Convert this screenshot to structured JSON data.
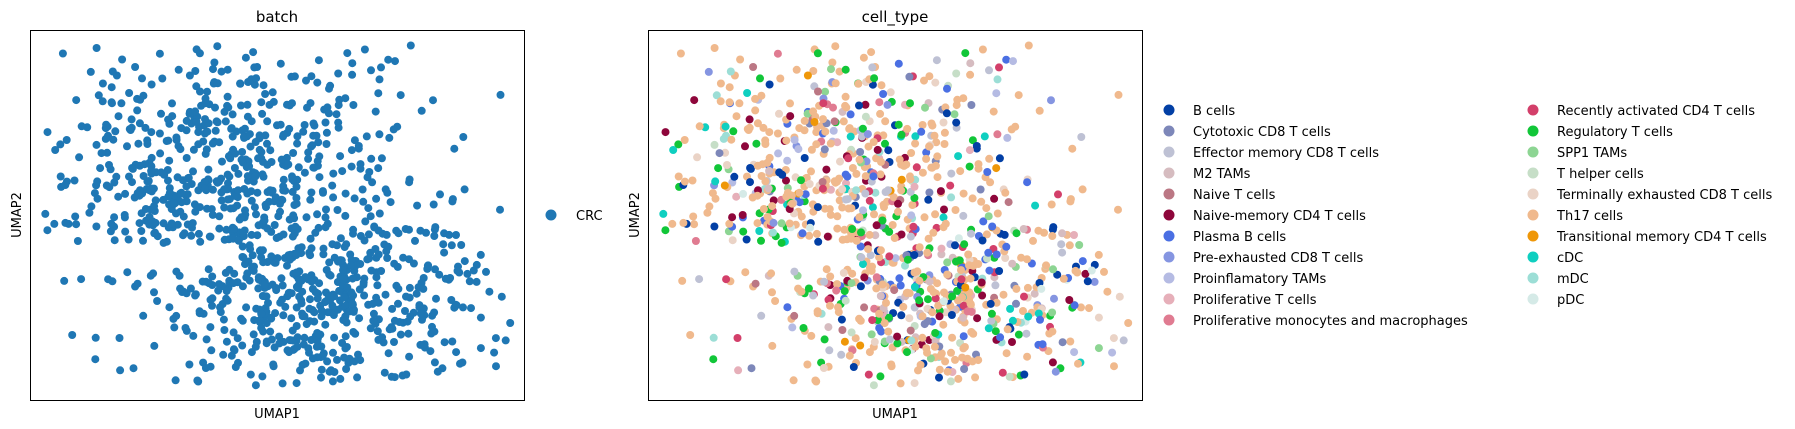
{
  "chart_data": [
    {
      "type": "scatter",
      "title": "batch",
      "xlabel": "UMAP1",
      "ylabel": "UMAP2",
      "grid": false,
      "legend_position": "right",
      "legend": [
        {
          "name": "CRC",
          "color": "#1f77b4"
        }
      ],
      "point_count": 1100
    },
    {
      "type": "scatter",
      "title": "cell_type",
      "xlabel": "UMAP1",
      "ylabel": "UMAP2",
      "grid": false,
      "legend_position": "right",
      "legend_columns": 2,
      "legend": [
        {
          "name": "B cells",
          "color": "#023fa5",
          "share": 0.06
        },
        {
          "name": "Cytotoxic CD8 T cells",
          "color": "#7d87b9",
          "share": 0.03
        },
        {
          "name": "Effector memory CD8 T cells",
          "color": "#bec1d4",
          "share": 0.03
        },
        {
          "name": "M2 TAMs",
          "color": "#d6bcc0",
          "share": 0.02
        },
        {
          "name": "Naive T cells",
          "color": "#bb7784",
          "share": 0.02
        },
        {
          "name": "Naive-memory CD4 T cells",
          "color": "#8e063b",
          "share": 0.05
        },
        {
          "name": "Plasma B cells",
          "color": "#4a6fe3",
          "share": 0.06
        },
        {
          "name": "Pre-exhausted CD8 T cells",
          "color": "#8595e1",
          "share": 0.03
        },
        {
          "name": "Proinflamatory TAMs",
          "color": "#b5bbe3",
          "share": 0.02
        },
        {
          "name": "Proliferative T cells",
          "color": "#e6afb9",
          "share": 0.02
        },
        {
          "name": "Proliferative monocytes and macrophages",
          "color": "#e07b91",
          "share": 0.02
        },
        {
          "name": "Recently activated CD4 T cells",
          "color": "#d33f6a",
          "share": 0.03
        },
        {
          "name": "Regulatory T cells",
          "color": "#11c638",
          "share": 0.06
        },
        {
          "name": "SPP1 TAMs",
          "color": "#8dd593",
          "share": 0.02
        },
        {
          "name": "T helper cells",
          "color": "#c6dec7",
          "share": 0.02
        },
        {
          "name": "Terminally exhausted CD8 T cells",
          "color": "#ead3c6",
          "share": 0.03
        },
        {
          "name": "Th17 cells",
          "color": "#f0b98d",
          "share": 0.42
        },
        {
          "name": "Transitional memory CD4 T cells",
          "color": "#ef9708",
          "share": 0.01
        },
        {
          "name": "cDC",
          "color": "#0fcfc0",
          "share": 0.02
        },
        {
          "name": "mDC",
          "color": "#9cded6",
          "share": 0.02
        },
        {
          "name": "pDC",
          "color": "#d5eae7",
          "share": 0.01
        }
      ],
      "point_count": 1100
    }
  ]
}
